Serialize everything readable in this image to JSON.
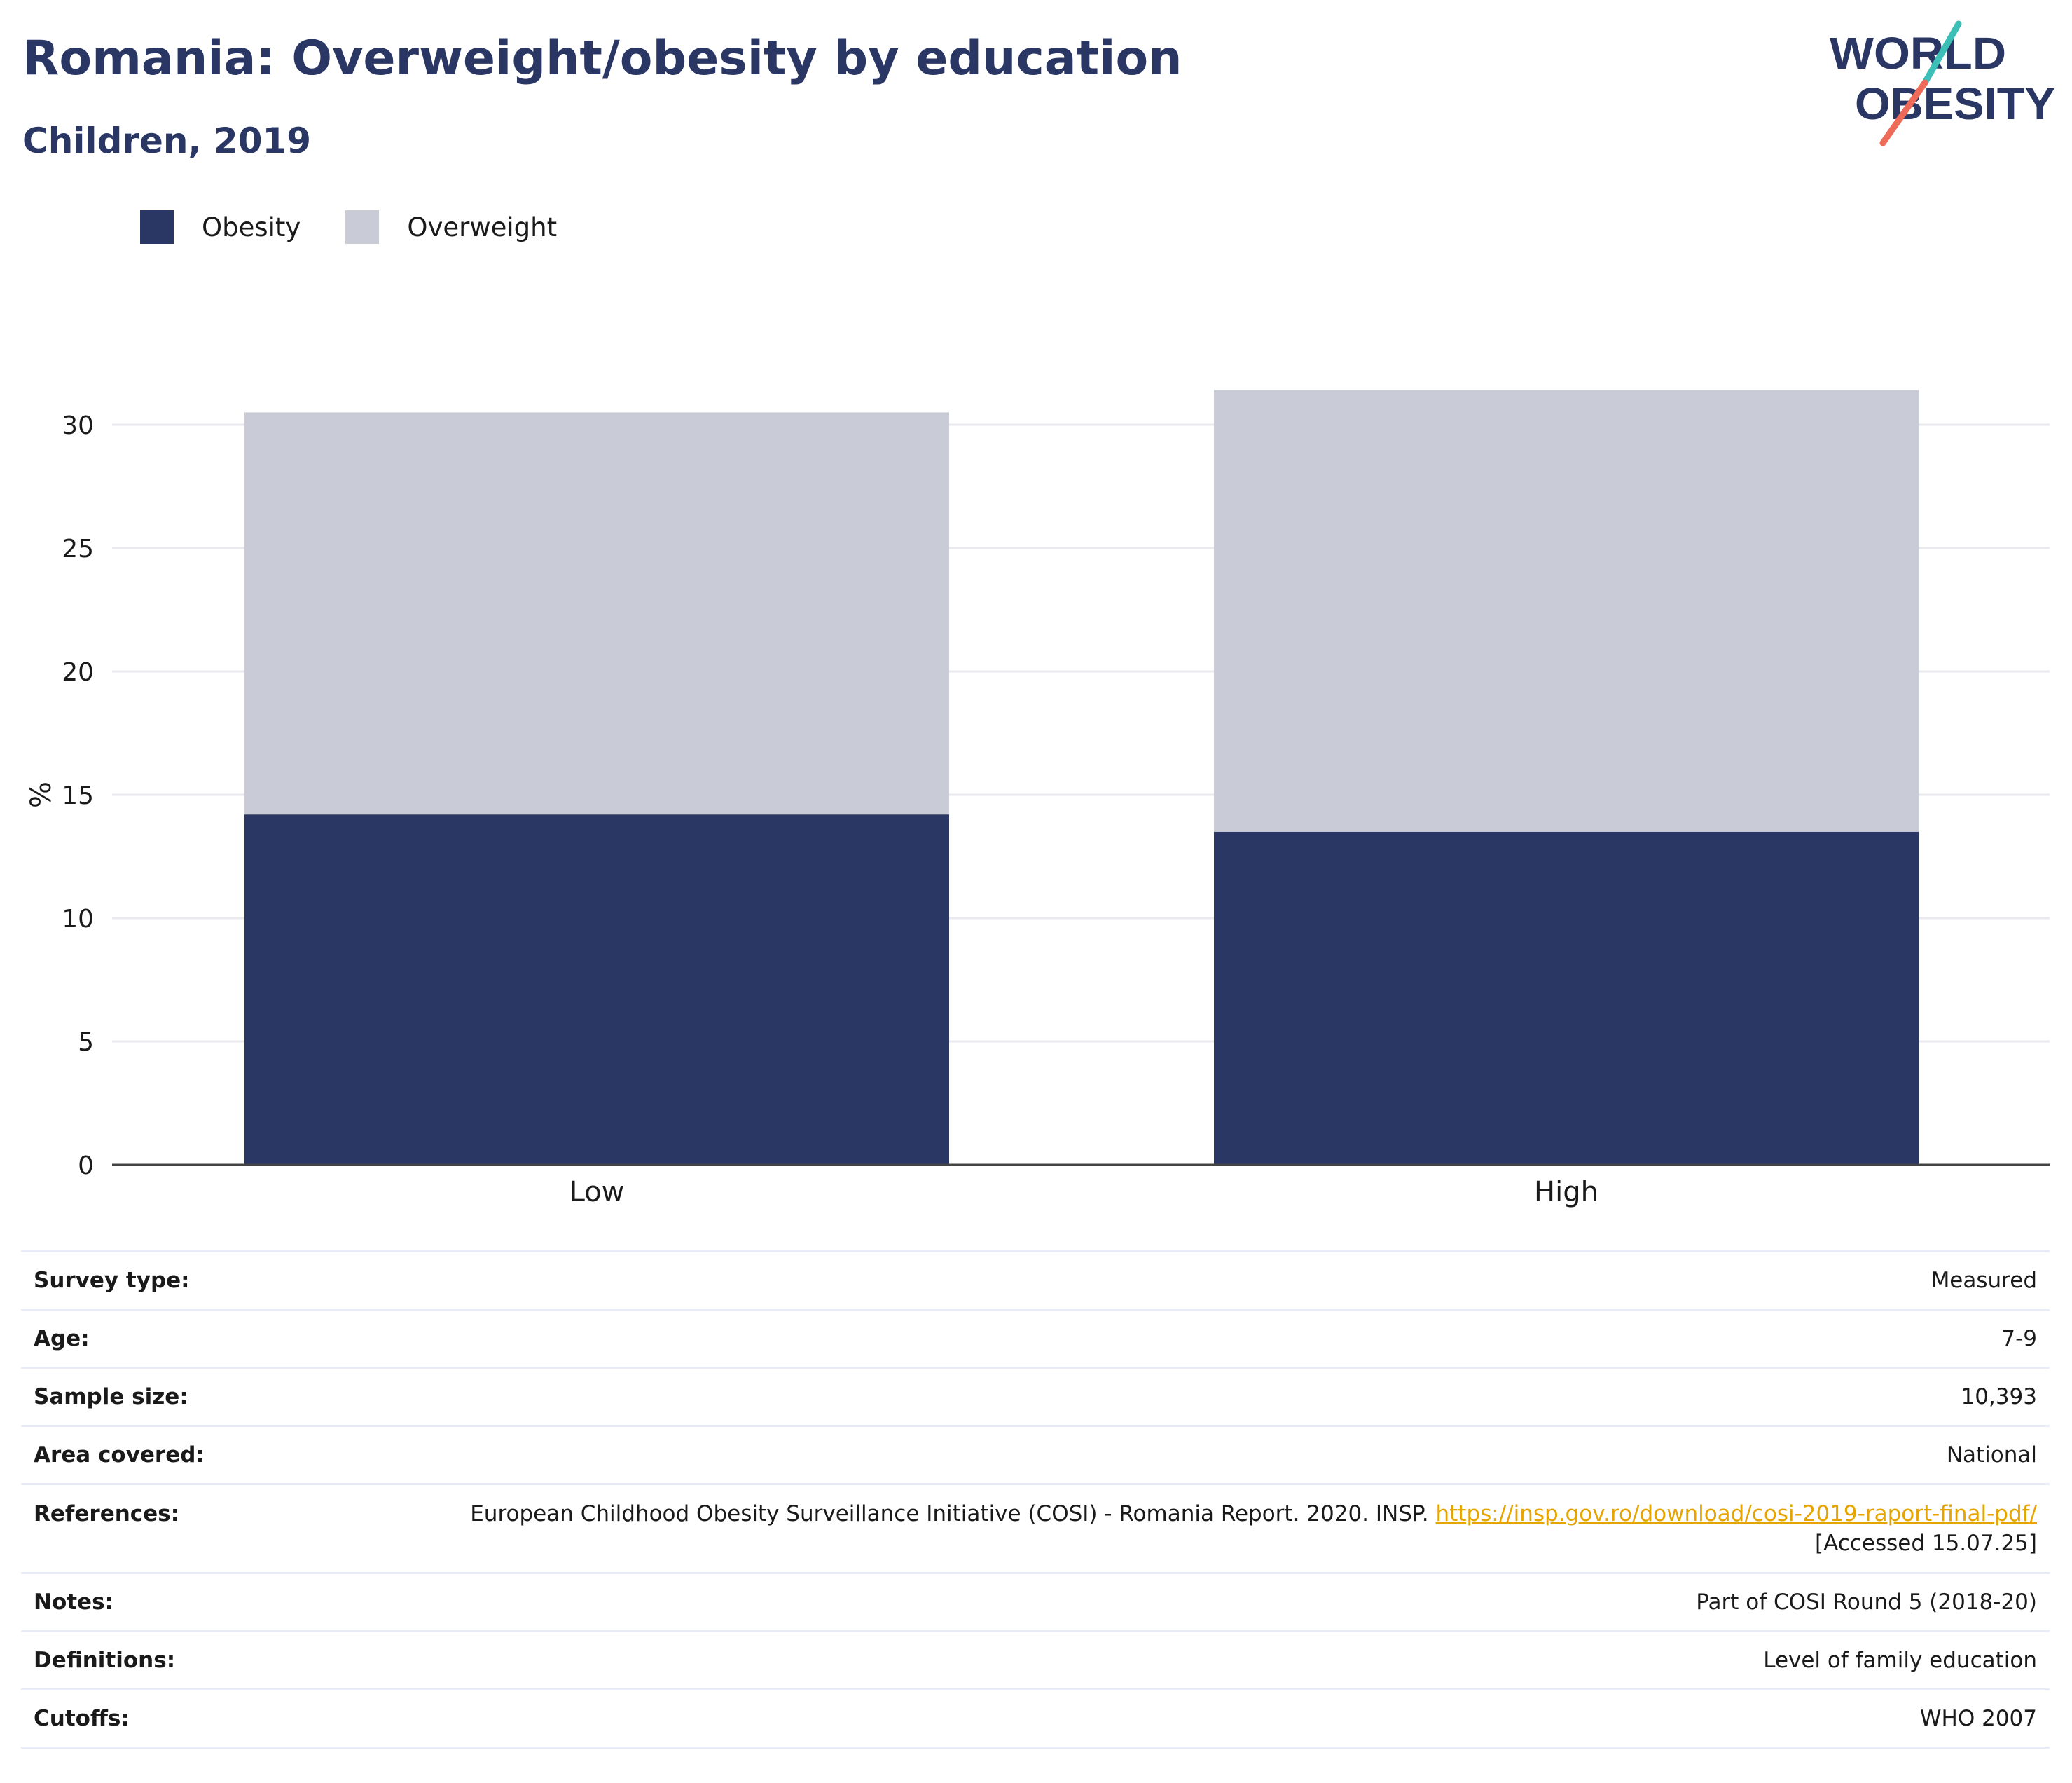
{
  "header": {
    "title": "Romania: Overweight/obesity by education",
    "subtitle": "Children, 2019"
  },
  "logo": {
    "line1": "WORLD",
    "line2": "OBESITY"
  },
  "colors": {
    "obesity": "#2a3764",
    "overweight": "#c9cbd6",
    "title": "#2a3764",
    "link": "#e6a400",
    "logo_teal": "#3bbfb6",
    "logo_coral": "#ee6b5a"
  },
  "chart_data": {
    "type": "bar",
    "stacked": true,
    "categories": [
      "Low",
      "High"
    ],
    "series": [
      {
        "name": "Obesity",
        "values": [
          14.2,
          13.5
        ]
      },
      {
        "name": "Overweight",
        "values": [
          16.3,
          17.9
        ]
      }
    ],
    "ylabel": "%",
    "xlabel": "",
    "ylim": [
      0,
      32
    ],
    "yticks": [
      0,
      5,
      10,
      15,
      20,
      25,
      30
    ],
    "grid": true,
    "legend_position": "top-left"
  },
  "info": {
    "survey_type": {
      "label": "Survey type:",
      "value": "Measured"
    },
    "age": {
      "label": "Age:",
      "value": "7-9"
    },
    "sample_size": {
      "label": "Sample size:",
      "value": "10,393"
    },
    "area_covered": {
      "label": "Area covered:",
      "value": "National"
    },
    "references": {
      "label": "References:",
      "text": "European Childhood Obesity Surveillance Initiative (COSI) - Romania Report. 2020. INSP.",
      "link": "https://insp.gov.ro/download/cosi-2019-raport-final-pdf/",
      "accessed": "[Accessed 15.07.25]"
    },
    "notes": {
      "label": "Notes:",
      "value": "Part of COSI Round 5 (2018-20)"
    },
    "definitions": {
      "label": "Definitions:",
      "value": "Level of family education"
    },
    "cutoffs": {
      "label": "Cutoffs:",
      "value": "WHO 2007"
    }
  }
}
